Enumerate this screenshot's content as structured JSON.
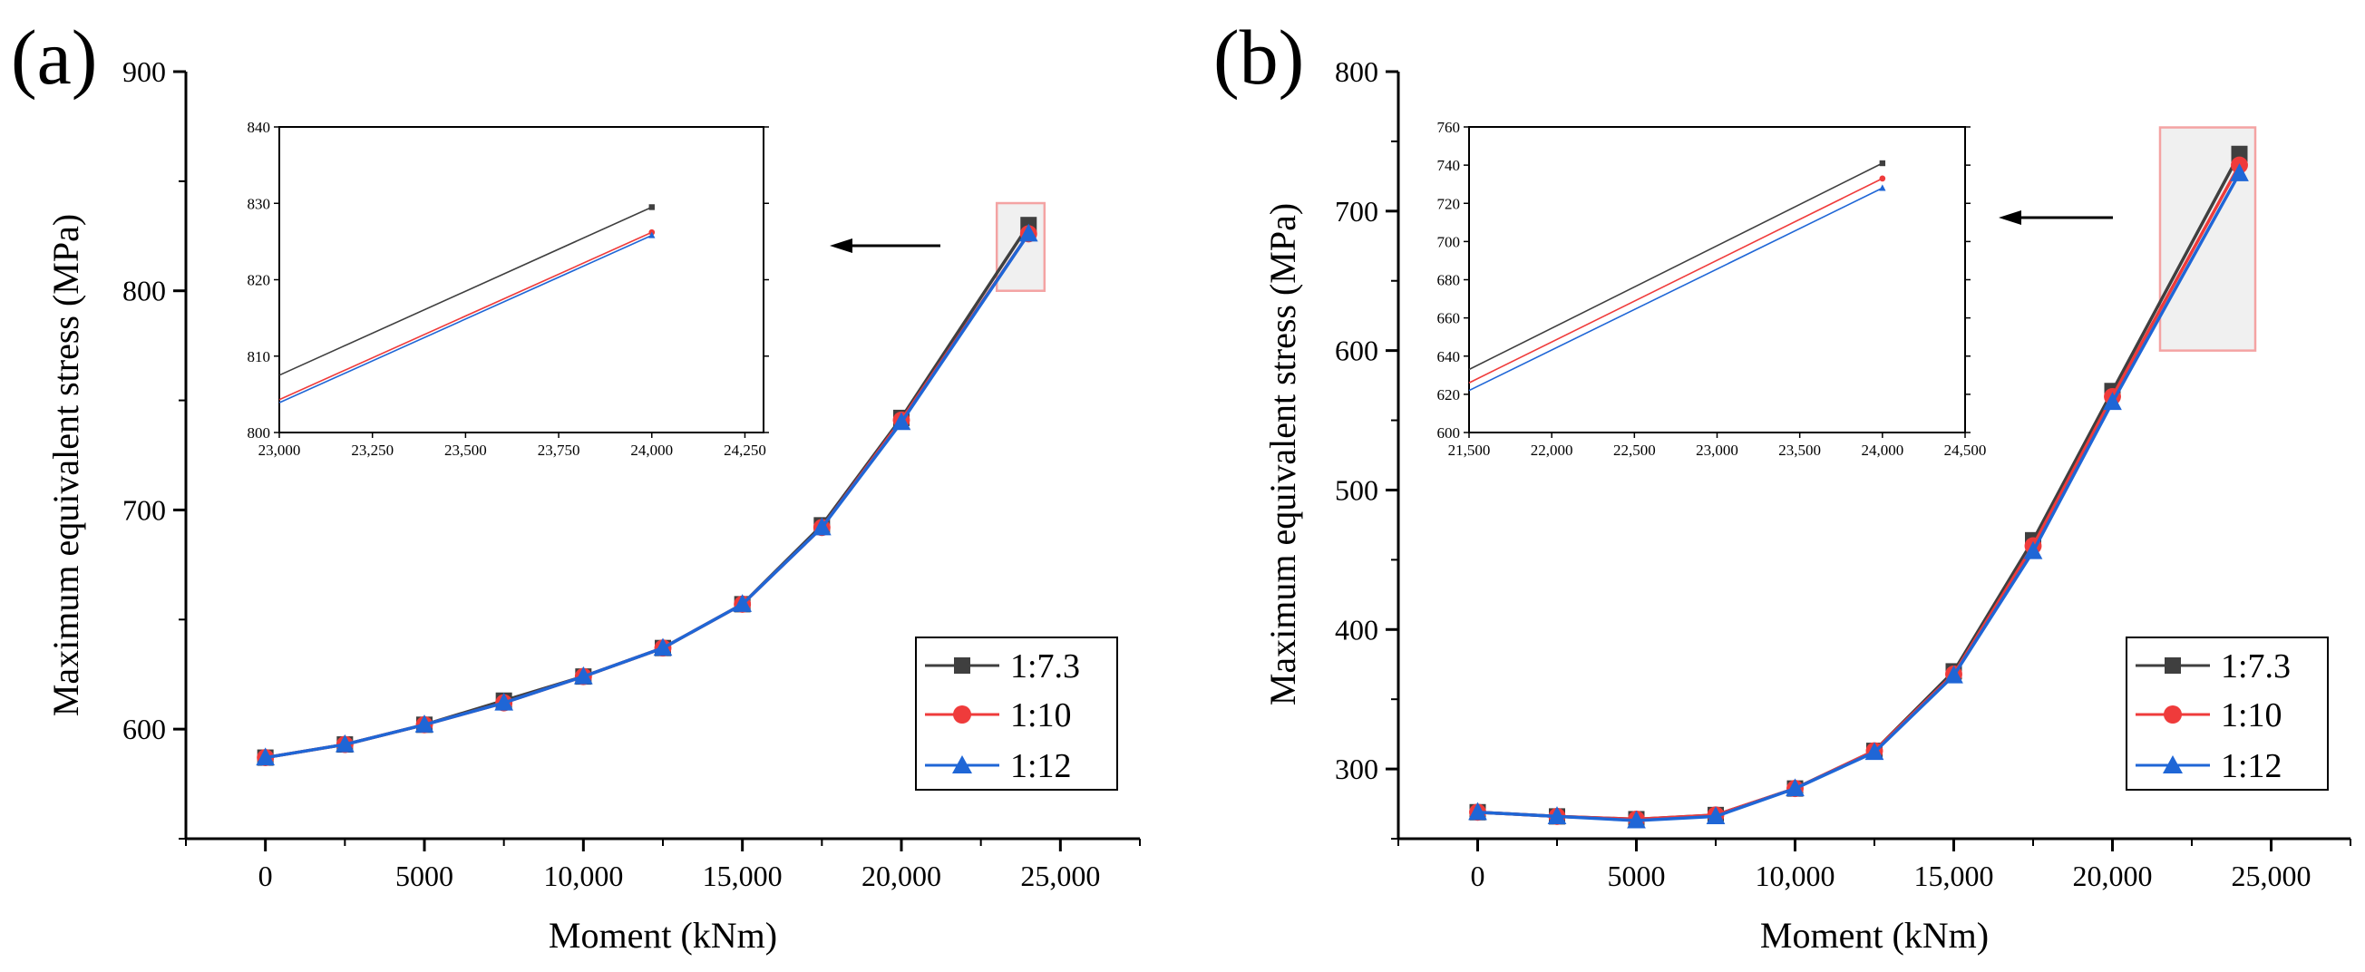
{
  "figure": {
    "panels": [
      {
        "label": "(a)"
      },
      {
        "label": "(b)"
      }
    ]
  },
  "series_styles": [
    {
      "name": "1:7.3",
      "color": "#3f3f3f",
      "marker": "square"
    },
    {
      "name": "1:10",
      "color": "#ef3b3b",
      "marker": "circle"
    },
    {
      "name": "1:12",
      "color": "#1f66d6",
      "marker": "triangle"
    }
  ],
  "chart_data": [
    {
      "type": "line",
      "panel": "(a)",
      "xlabel": "Moment (kNm)",
      "ylabel": "Maximum equivalent stress (MPa)",
      "xlim": [
        -2500,
        27500
      ],
      "ylim": [
        550,
        900
      ],
      "xticks": [
        0,
        5000,
        10000,
        15000,
        20000,
        25000
      ],
      "xtick_labels": [
        "0",
        "5000",
        "10,000",
        "15,000",
        "20,000",
        "25,000"
      ],
      "yticks": [
        600,
        700,
        800,
        900
      ],
      "ytick_labels": [
        "600",
        "700",
        "800",
        "900"
      ],
      "x": [
        0,
        2500,
        5000,
        7500,
        10000,
        12500,
        15000,
        17500,
        20000,
        24000
      ],
      "series": [
        {
          "name": "1:7.3",
          "values": [
            587,
            593,
            602,
            613,
            624,
            637,
            657,
            693,
            742,
            830
          ]
        },
        {
          "name": "1:10",
          "values": [
            587,
            593,
            602,
            612,
            624,
            637,
            657,
            692,
            741,
            826
          ]
        },
        {
          "name": "1:12",
          "values": [
            587,
            593,
            602,
            612,
            624,
            637,
            657,
            692,
            740,
            826
          ]
        }
      ],
      "legend": {
        "position": "bottom-right",
        "entries": [
          "1:7.3",
          "1:10",
          "1:12"
        ]
      },
      "highlight_box": {
        "xrange": [
          23000,
          24500
        ],
        "yrange": [
          800,
          840
        ]
      },
      "inset": {
        "xlim": [
          23000,
          24300
        ],
        "ylim": [
          800,
          840
        ],
        "xticks": [
          23000,
          23250,
          23500,
          23750,
          24000,
          24250
        ],
        "xtick_labels": [
          "23,000",
          "23,250",
          "23,500",
          "23,750",
          "24,000",
          "24,250"
        ],
        "yticks": [
          800,
          810,
          820,
          830,
          840
        ],
        "ytick_labels": [
          "800",
          "810",
          "820",
          "830",
          "840"
        ],
        "series": [
          {
            "name": "1:7.3",
            "x": [
              23000,
              24000
            ],
            "values": [
              807.5,
              829.5
            ]
          },
          {
            "name": "1:10",
            "x": [
              23000,
              24000
            ],
            "values": [
              804.3,
              826.2
            ]
          },
          {
            "name": "1:12",
            "x": [
              23000,
              24000
            ],
            "values": [
              803.9,
              825.8
            ]
          }
        ]
      }
    },
    {
      "type": "line",
      "panel": "(b)",
      "xlabel": "Moment (kNm)",
      "ylabel": "Maximum equivalent stress (MPa)",
      "xlim": [
        -2500,
        27500
      ],
      "ylim": [
        250,
        800
      ],
      "xticks": [
        0,
        5000,
        10000,
        15000,
        20000,
        25000
      ],
      "xtick_labels": [
        "0",
        "5000",
        "10,000",
        "15,000",
        "20,000",
        "25,000"
      ],
      "yticks": [
        300,
        400,
        500,
        600,
        700,
        800
      ],
      "ytick_labels": [
        "300",
        "400",
        "500",
        "600",
        "700",
        "800"
      ],
      "x": [
        0,
        2500,
        5000,
        7500,
        10000,
        12500,
        15000,
        17500,
        20000,
        24000
      ],
      "series": [
        {
          "name": "1:7.3",
          "values": [
            269,
            266,
            264,
            267,
            286,
            313,
            370,
            464,
            571,
            741
          ]
        },
        {
          "name": "1:10",
          "values": [
            269,
            266,
            264,
            267,
            286,
            313,
            368,
            460,
            567,
            733
          ]
        },
        {
          "name": "1:12",
          "values": [
            269,
            266,
            263,
            266,
            286,
            312,
            367,
            456,
            563,
            727
          ]
        }
      ],
      "legend": {
        "position": "bottom-right",
        "entries": [
          "1:7.3",
          "1:10",
          "1:12"
        ]
      },
      "highlight_box": {
        "xrange": [
          21500,
          24500
        ],
        "yrange": [
          600,
          760
        ]
      },
      "inset": {
        "xlim": [
          21500,
          24500
        ],
        "ylim": [
          600,
          760
        ],
        "xticks": [
          21500,
          22000,
          22500,
          23000,
          23500,
          24000,
          24500
        ],
        "xtick_labels": [
          "21,500",
          "22,000",
          "22,500",
          "23,000",
          "23,500",
          "24,000",
          "24,500"
        ],
        "yticks": [
          600,
          620,
          640,
          660,
          680,
          700,
          720,
          740,
          760
        ],
        "ytick_labels": [
          "600",
          "620",
          "640",
          "660",
          "680",
          "700",
          "720",
          "740",
          "760"
        ],
        "series": [
          {
            "name": "1:7.3",
            "x": [
              21500,
              24000
            ],
            "values": [
              633,
              741
            ]
          },
          {
            "name": "1:10",
            "x": [
              21500,
              24000
            ],
            "values": [
              626,
              733
            ]
          },
          {
            "name": "1:12",
            "x": [
              21500,
              24000
            ],
            "values": [
              622,
              728
            ]
          }
        ]
      }
    }
  ]
}
